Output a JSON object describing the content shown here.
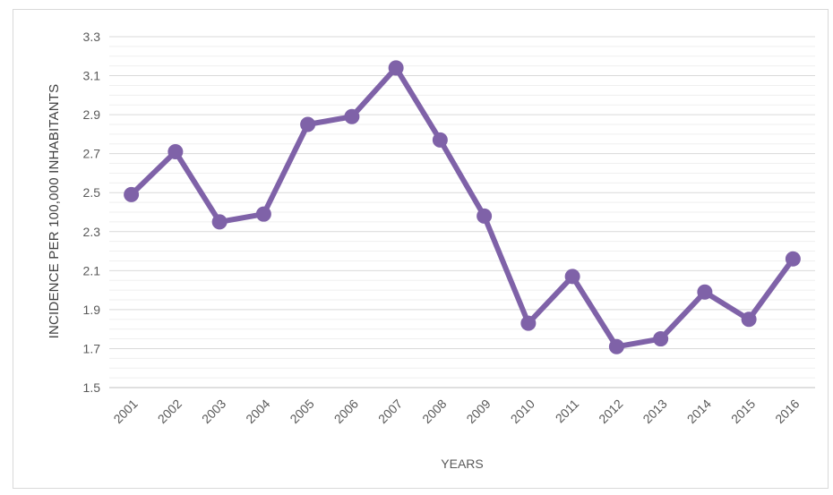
{
  "chart_data": {
    "type": "line",
    "title": "",
    "xlabel": "YEARS",
    "ylabel": "INCIDENCE PER 100,000 INHABITANTS",
    "categories": [
      "2001",
      "2002",
      "2003",
      "2004",
      "2005",
      "2006",
      "2007",
      "2008",
      "2009",
      "2010",
      "2011",
      "2012",
      "2013",
      "2014",
      "2015",
      "2016"
    ],
    "series": [
      {
        "values": [
          2.49,
          2.71,
          2.35,
          2.39,
          2.85,
          2.89,
          3.14,
          2.77,
          2.38,
          1.83,
          2.07,
          1.71,
          1.75,
          1.99,
          1.85,
          2.16
        ]
      }
    ],
    "ylim": [
      1.5,
      3.3
    ],
    "yticks": [
      1.5,
      1.7,
      1.9,
      2.1,
      2.3,
      2.5,
      2.7,
      2.9,
      3.1,
      3.3
    ],
    "grid": true,
    "legend": "none",
    "colors": {
      "line": "#7f62a8",
      "grid": "#d9d9d9",
      "axis": "#bfbfbf"
    }
  }
}
